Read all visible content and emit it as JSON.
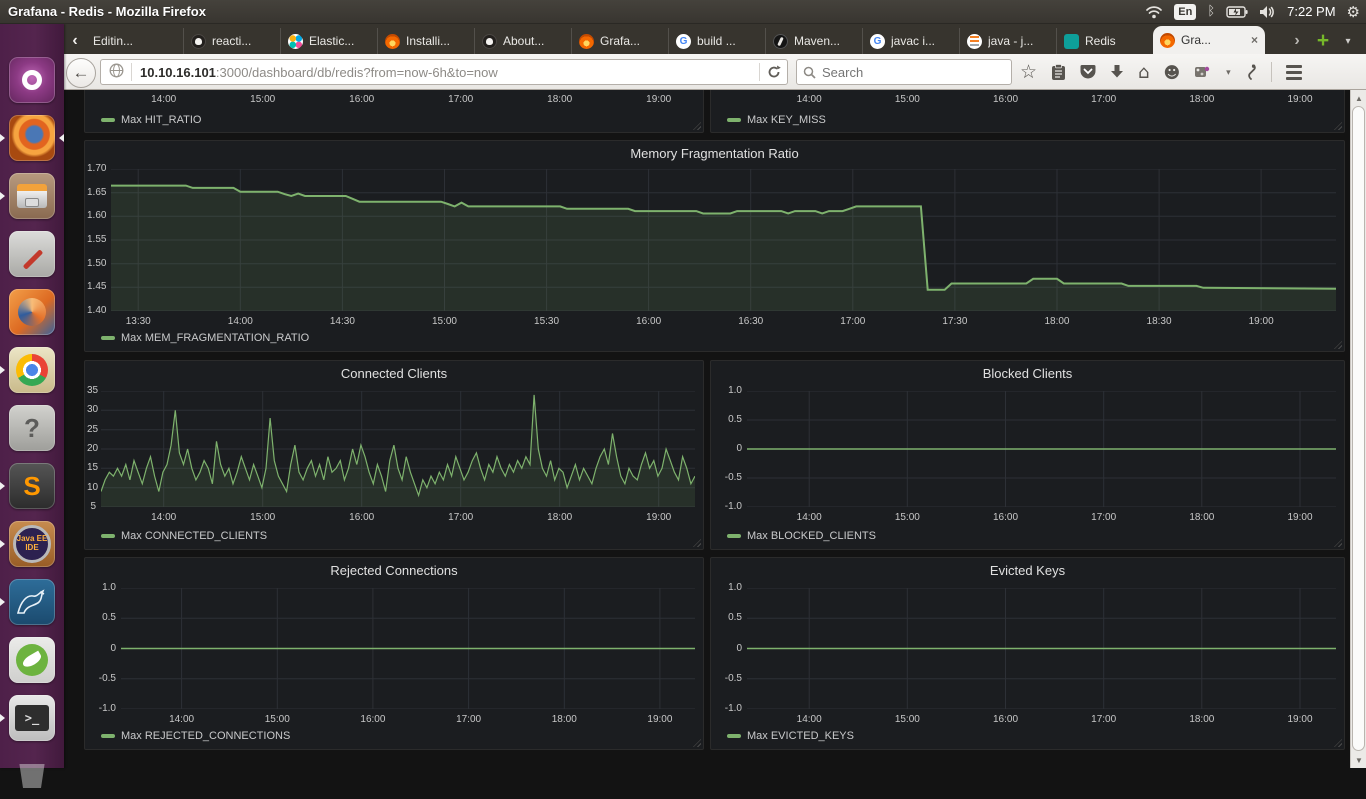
{
  "desktop": {
    "topbar": {
      "title": "Grafana - Redis - Mozilla Firefox",
      "keyboard_indicator": "En",
      "clock": "7:22 PM",
      "tray": [
        "network-wifi-icon",
        "keyboard-layout",
        "bluetooth-icon",
        "battery-charging-icon",
        "volume-icon",
        "clock",
        "session-gear-icon"
      ]
    },
    "launcher": [
      {
        "id": "ubuntu-dash",
        "running": false,
        "focused": false
      },
      {
        "id": "firefox",
        "running": true,
        "focused": true
      },
      {
        "id": "files",
        "running": true,
        "focused": false
      },
      {
        "id": "system-settings",
        "running": false,
        "focused": false
      },
      {
        "id": "software-center",
        "running": false,
        "focused": false
      },
      {
        "id": "chrome",
        "running": true,
        "focused": false
      },
      {
        "id": "help",
        "running": false,
        "focused": false,
        "glyph": "?"
      },
      {
        "id": "sublime-text",
        "running": true,
        "focused": false,
        "glyph": "S"
      },
      {
        "id": "eclipse-javaee",
        "running": true,
        "focused": false,
        "glyph": "Java EE|IDE"
      },
      {
        "id": "mysql-workbench",
        "running": true,
        "focused": false
      },
      {
        "id": "spring",
        "running": false,
        "focused": false
      },
      {
        "id": "terminal",
        "running": true,
        "focused": false,
        "glyph": ">_"
      },
      {
        "id": "trash",
        "running": false,
        "focused": false
      }
    ]
  },
  "browser": {
    "tab_scroll_left": "‹",
    "tab_scroll_right": "›",
    "new_tab_label": "+",
    "tabs_dropdown": "▾",
    "tabs": [
      {
        "label": "Editin...",
        "icon": "none",
        "active": false
      },
      {
        "label": "reacti...",
        "icon": "github",
        "active": false
      },
      {
        "label": "Elastic...",
        "icon": "elastic",
        "active": false
      },
      {
        "label": "Installi...",
        "icon": "grafana",
        "active": false
      },
      {
        "label": "About...",
        "icon": "github",
        "active": false
      },
      {
        "label": "Grafa...",
        "icon": "grafana",
        "active": false
      },
      {
        "label": "build ...",
        "icon": "google",
        "active": false
      },
      {
        "label": "Maven...",
        "icon": "maven",
        "active": false
      },
      {
        "label": "javac i...",
        "icon": "google",
        "active": false
      },
      {
        "label": "java - j...",
        "icon": "stackoverflow",
        "active": false
      },
      {
        "label": "Redis",
        "icon": "redis",
        "active": false
      },
      {
        "label": "Gra...",
        "icon": "grafana",
        "active": true,
        "close_glyph": "×"
      }
    ],
    "urlbar": {
      "host": "10.10.16.101",
      "rest": ":3000/dashboard/db/redis?from=now-6h&to=now"
    },
    "search": {
      "placeholder": "Search"
    },
    "nav_glyphs": {
      "bookmark_star": "☆",
      "home": "⌂",
      "feedback": "☻",
      "caret": "▾"
    }
  },
  "dashboard": {
    "colors": {
      "line_green": "#7eb26d",
      "panel_bg": "#1b1d20",
      "grid": "#2d3036",
      "axis_text": "#c8c8c8"
    },
    "time_axis": {
      "start_minutes": 802,
      "end_minutes": 1162
    },
    "hour_ticks": [
      [
        840,
        "14:00"
      ],
      [
        900,
        "15:00"
      ],
      [
        960,
        "16:00"
      ],
      [
        1020,
        "17:00"
      ],
      [
        1080,
        "18:00"
      ],
      [
        1140,
        "19:00"
      ]
    ],
    "half_hour_ticks": [
      [
        810,
        "13:30"
      ],
      [
        840,
        "14:00"
      ],
      [
        870,
        "14:30"
      ],
      [
        900,
        "15:00"
      ],
      [
        930,
        "15:30"
      ],
      [
        960,
        "16:00"
      ],
      [
        990,
        "16:30"
      ],
      [
        1020,
        "17:00"
      ],
      [
        1050,
        "17:30"
      ],
      [
        1080,
        "18:00"
      ],
      [
        1110,
        "18:30"
      ],
      [
        1140,
        "19:00"
      ]
    ],
    "panels": [
      {
        "id": "hit-ratio",
        "slot": "r1l",
        "type": "partial",
        "legend": "Max HIT_RATIO",
        "padLeft": 16,
        "ticks": "hour"
      },
      {
        "id": "key-miss",
        "slot": "r1r",
        "type": "partial",
        "legend": "Max KEY_MISS",
        "padLeft": 36,
        "ticks": "hour"
      },
      {
        "id": "mem-fragmentation",
        "slot": "r2",
        "type": "chart",
        "title": "Memory Fragmentation Ratio",
        "legend": "Max MEM_FRAGMENTATION_RATIO",
        "padLeft": 26,
        "plotTop": 28,
        "plotBottom": 42,
        "ticks": "half",
        "ylim": [
          1.4,
          1.7
        ],
        "lw": 2,
        "fill": true,
        "y_ticks": [
          [
            1.7,
            "1.70"
          ],
          [
            1.65,
            "1.65"
          ],
          [
            1.6,
            "1.60"
          ],
          [
            1.55,
            "1.55"
          ],
          [
            1.5,
            "1.50"
          ],
          [
            1.45,
            "1.45"
          ],
          [
            1.4,
            "1.40"
          ]
        ],
        "series": [
          [
            802,
            1.665
          ],
          [
            824,
            1.665
          ],
          [
            826,
            1.66
          ],
          [
            838,
            1.66
          ],
          [
            840,
            1.652
          ],
          [
            851,
            1.652
          ],
          [
            853,
            1.647
          ],
          [
            855,
            1.643
          ],
          [
            857,
            1.648
          ],
          [
            859,
            1.643
          ],
          [
            871,
            1.643
          ],
          [
            873,
            1.637
          ],
          [
            875,
            1.631
          ],
          [
            899,
            1.631
          ],
          [
            901,
            1.626
          ],
          [
            903,
            1.621
          ],
          [
            905,
            1.629
          ],
          [
            907,
            1.621
          ],
          [
            934,
            1.621
          ],
          [
            936,
            1.616
          ],
          [
            954,
            1.616
          ],
          [
            956,
            1.611
          ],
          [
            974,
            1.611
          ],
          [
            976,
            1.606
          ],
          [
            984,
            1.606
          ],
          [
            986,
            1.611
          ],
          [
            999,
            1.611
          ],
          [
            1001,
            1.606
          ],
          [
            1003,
            1.611
          ],
          [
            1009,
            1.611
          ],
          [
            1011,
            1.606
          ],
          [
            1013,
            1.611
          ],
          [
            1017,
            1.611
          ],
          [
            1019,
            1.616
          ],
          [
            1021,
            1.621
          ],
          [
            1040,
            1.621
          ],
          [
            1042,
            1.445
          ],
          [
            1047,
            1.445
          ],
          [
            1049,
            1.458
          ],
          [
            1071,
            1.458
          ],
          [
            1073,
            1.468
          ],
          [
            1080,
            1.468
          ],
          [
            1082,
            1.458
          ],
          [
            1099,
            1.458
          ],
          [
            1101,
            1.453
          ],
          [
            1121,
            1.453
          ],
          [
            1123,
            1.449
          ],
          [
            1162,
            1.447
          ]
        ]
      },
      {
        "id": "connected-clients",
        "slot": "r3l",
        "type": "chart",
        "title": "Connected Clients",
        "legend": "Max CONNECTED_CLIENTS",
        "padLeft": 16,
        "plotTop": 30,
        "plotBottom": 44,
        "ticks": "hour",
        "ylim": [
          5,
          35
        ],
        "lw": 1.2,
        "fill": true,
        "y_ticks": [
          [
            35,
            "35"
          ],
          [
            30,
            "30"
          ],
          [
            25,
            "25"
          ],
          [
            20,
            "20"
          ],
          [
            15,
            "15"
          ],
          [
            10,
            "10"
          ],
          [
            5,
            "5"
          ]
        ],
        "sampled": {
          "start": 802,
          "step": 2.5,
          "values": [
            9,
            12,
            14,
            13,
            15,
            13,
            16,
            12,
            17,
            14,
            11,
            15,
            18,
            13,
            9,
            14,
            16,
            21,
            30,
            19,
            16,
            20,
            15,
            12,
            14,
            17,
            15,
            11,
            22,
            16,
            13,
            15,
            11,
            14,
            18,
            15,
            12,
            16,
            13,
            10,
            15,
            28,
            17,
            13,
            11,
            9,
            16,
            21,
            14,
            12,
            15,
            17,
            13,
            16,
            12,
            18,
            14,
            15,
            17,
            12,
            15,
            20,
            16,
            21,
            18,
            14,
            11,
            16,
            13,
            9,
            17,
            21,
            15,
            12,
            18,
            14,
            11,
            8,
            12,
            10,
            13,
            11,
            14,
            12,
            16,
            13,
            18,
            15,
            12,
            14,
            17,
            19,
            15,
            12,
            16,
            14,
            18,
            15,
            13,
            16,
            14,
            17,
            15,
            18,
            16,
            34,
            20,
            15,
            13,
            17,
            12,
            15,
            14,
            10,
            13,
            16,
            12,
            15,
            13,
            11,
            15,
            18,
            20,
            16,
            24,
            18,
            13,
            11,
            15,
            13,
            12,
            16,
            19,
            15,
            17,
            13,
            15,
            20,
            17,
            14,
            12,
            18,
            15,
            11,
            13
          ]
        }
      },
      {
        "id": "blocked-clients",
        "slot": "r3r",
        "type": "chart",
        "title": "Blocked Clients",
        "legend": "Max BLOCKED_CLIENTS",
        "padLeft": 36,
        "plotTop": 30,
        "plotBottom": 44,
        "ticks": "hour",
        "ylim": [
          -1,
          1
        ],
        "lw": 1.5,
        "fill": false,
        "y_ticks": [
          [
            1,
            "1.0"
          ],
          [
            0.5,
            "0.5"
          ],
          [
            0,
            "0"
          ],
          [
            -0.5,
            "-0.5"
          ],
          [
            -1,
            "-1.0"
          ]
        ],
        "series": [
          [
            802,
            0
          ],
          [
            1162,
            0
          ]
        ]
      },
      {
        "id": "rejected-connections",
        "slot": "r4l",
        "type": "chart",
        "title": "Rejected Connections",
        "legend": "Max REJECTED_CONNECTIONS",
        "padLeft": 36,
        "plotTop": 30,
        "plotBottom": 42,
        "ticks": "hour",
        "ylim": [
          -1,
          1
        ],
        "lw": 1.5,
        "fill": false,
        "y_ticks": [
          [
            1,
            "1.0"
          ],
          [
            0.5,
            "0.5"
          ],
          [
            0,
            "0"
          ],
          [
            -0.5,
            "-0.5"
          ],
          [
            -1,
            "-1.0"
          ]
        ],
        "series": [
          [
            802,
            0
          ],
          [
            1162,
            0
          ]
        ]
      },
      {
        "id": "evicted-keys",
        "slot": "r4r",
        "type": "chart",
        "title": "Evicted Keys",
        "legend": "Max EVICTED_KEYS",
        "padLeft": 36,
        "plotTop": 30,
        "plotBottom": 42,
        "ticks": "hour",
        "ylim": [
          -1,
          1
        ],
        "lw": 1.5,
        "fill": false,
        "y_ticks": [
          [
            1,
            "1.0"
          ],
          [
            0.5,
            "0.5"
          ],
          [
            0,
            "0"
          ],
          [
            -0.5,
            "-0.5"
          ],
          [
            -1,
            "-1.0"
          ]
        ],
        "series": [
          [
            802,
            0
          ],
          [
            1162,
            0
          ]
        ]
      }
    ]
  }
}
